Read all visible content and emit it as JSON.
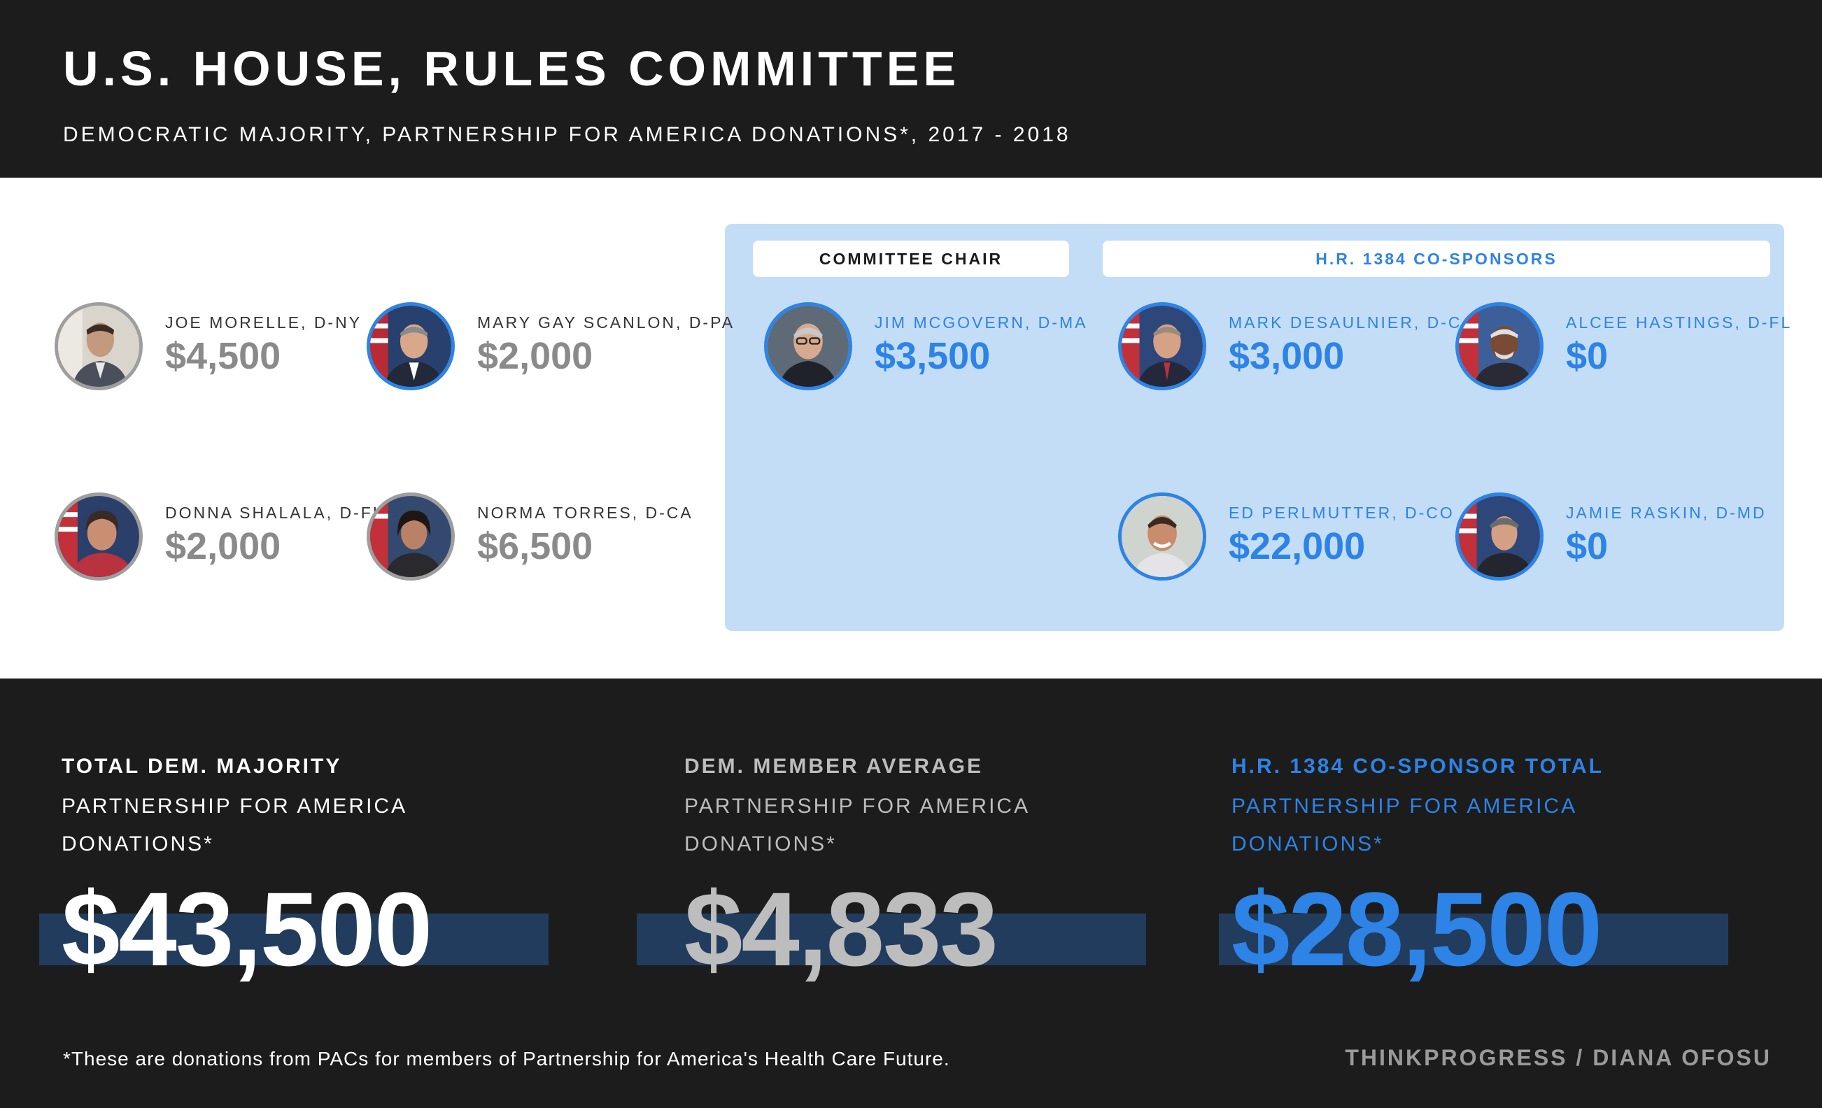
{
  "header": {
    "title": "U.S. HOUSE, RULES COMMITTEE",
    "subtitle": "DEMOCRATIC MAJORITY, PARTNERSHIP FOR AMERICA DONATIONS*, 2017 - 2018"
  },
  "panel": {
    "chair_label": "COMMITTEE CHAIR",
    "cosponsors_label": "H.R. 1384 CO-SPONSORS"
  },
  "members": [
    {
      "name": "JOE MORELLE, D-NY",
      "amount": "$4,500"
    },
    {
      "name": "MARY GAY SCANLON, D-PA",
      "amount": "$2,000"
    },
    {
      "name": "DONNA SHALALA, D-FL",
      "amount": "$2,000"
    },
    {
      "name": "NORMA TORRES, D-CA",
      "amount": "$6,500"
    },
    {
      "name": "JIM MCGOVERN, D-MA",
      "amount": "$3,500"
    },
    {
      "name": "MARK DESAULNIER, D-CA",
      "amount": "$3,000"
    },
    {
      "name": "ALCEE HASTINGS, D-FL",
      "amount": "$0"
    },
    {
      "name": "ED PERLMUTTER, D-CO",
      "amount": "$22,000"
    },
    {
      "name": "JAMIE RASKIN, D-MD",
      "amount": "$0"
    }
  ],
  "stats": [
    {
      "label": "TOTAL DEM. MAJORITY",
      "desc": "PARTNERSHIP FOR AMERICA DONATIONS*",
      "value": "$43,500"
    },
    {
      "label": "DEM. MEMBER AVERAGE",
      "desc": "PARTNERSHIP FOR AMERICA DONATIONS*",
      "value": "$4,833"
    },
    {
      "label": "H.R. 1384 CO-SPONSOR TOTAL",
      "desc": "PARTNERSHIP FOR AMERICA DONATIONS*",
      "value": "$28,500"
    }
  ],
  "footer": {
    "footnote": "*These are donations from PACs for members of Partnership for America's Health Care Future.",
    "credit": "THINKPROGRESS / DIANA OFOSU"
  },
  "colors": {
    "background_dark": "#1c1c1c",
    "panel_blue": "#c3ddf7",
    "accent_blue": "#2d83e6",
    "amount_gray": "#8a8a8a",
    "stat_bar": "#223c5e"
  }
}
